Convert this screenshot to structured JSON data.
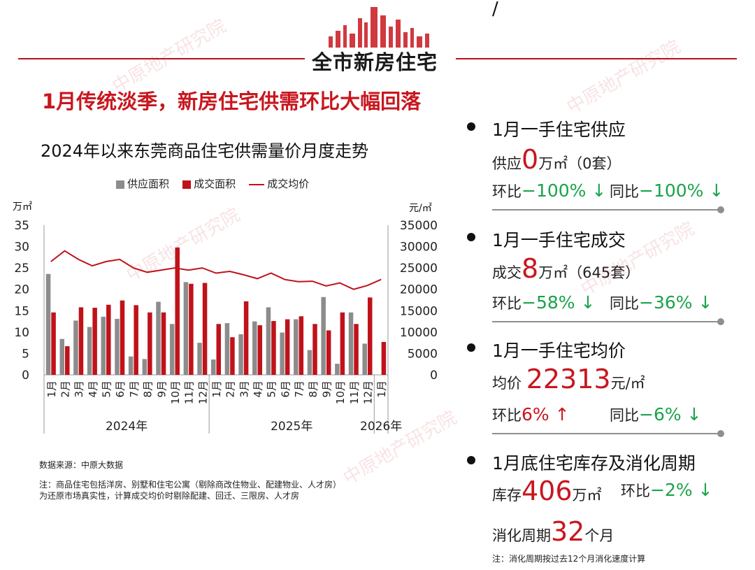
{
  "header": {
    "title": "全市新房住宅",
    "corner_mark": "/"
  },
  "headline": "1月传统淡季，新房住宅供需环比大幅回落",
  "chart_data": {
    "type": "bar",
    "title": "2024年以来东莞商品住宅供需量价月度走势",
    "y_left_unit": "万㎡",
    "y_right_unit": "元/㎡",
    "ylim_left": [
      0,
      35
    ],
    "ylim_right": [
      0,
      35000
    ],
    "y_left_ticks": [
      "0",
      "5",
      "10",
      "15",
      "20",
      "25",
      "30",
      "35"
    ],
    "y_right_ticks": [
      "0",
      "5000",
      "10000",
      "15000",
      "20000",
      "25000",
      "30000",
      "35000"
    ],
    "legend": [
      "供应面积",
      "成交面积",
      "成交均价"
    ],
    "categories": [
      "1月",
      "2月",
      "3月",
      "4月",
      "5月",
      "6月",
      "7月",
      "8月",
      "9月",
      "10月",
      "11月",
      "12月",
      "1月",
      "2月",
      "3月",
      "4月",
      "5月",
      "6月",
      "7月",
      "8月",
      "9月",
      "10月",
      "11月",
      "12月",
      "1月"
    ],
    "year_groups": [
      {
        "label": "2024年",
        "start": 0,
        "end": 11
      },
      {
        "label": "2025年",
        "start": 12,
        "end": 23
      },
      {
        "label": "2026年",
        "start": 24,
        "end": 24
      }
    ],
    "series": [
      {
        "name": "供应面积",
        "type": "bar",
        "axis": "left",
        "color": "#8c8c8c",
        "values": [
          23.6,
          8.4,
          12.7,
          11.2,
          13.6,
          13.1,
          4.3,
          3.7,
          17.1,
          11.9,
          21.7,
          7.5,
          3.6,
          12.1,
          9.5,
          12.5,
          15.8,
          9.9,
          13.0,
          5.8,
          18.2,
          2.6,
          14.6,
          7.3,
          0
        ]
      },
      {
        "name": "成交面积",
        "type": "bar",
        "axis": "left",
        "color": "#c0121a",
        "values": [
          14.6,
          6.7,
          15.8,
          15.7,
          16.4,
          17.4,
          16.3,
          14.6,
          14.6,
          29.8,
          21.3,
          21.5,
          11.9,
          8.8,
          17.2,
          11.6,
          12.6,
          13.0,
          13.7,
          11.9,
          10.4,
          14.6,
          11.9,
          18.1,
          7.7
        ]
      },
      {
        "name": "成交均价",
        "type": "line",
        "axis": "right",
        "color": "#c0121a",
        "values": [
          26500,
          29000,
          27000,
          25500,
          26500,
          27000,
          25000,
          24000,
          24500,
          25000,
          24500,
          25000,
          23800,
          24200,
          23400,
          22500,
          23800,
          22300,
          21800,
          21900,
          20800,
          21500,
          20000,
          20900,
          22313
        ]
      }
    ]
  },
  "notes": {
    "source": "数据来源：中原大数据",
    "line1": "注：商品住宅包括洋房、别墅和住宅公寓（剔除商改住物业、配建物业、人才房）",
    "line2": "为还原市场真实性，计算成交均价时剔除配建、回迁、三限房、人才房"
  },
  "kpis": [
    {
      "heading": "1月一手住宅供应",
      "main_prefix": "供应",
      "main_value": "0",
      "main_unit": "万㎡",
      "main_suffix": "（0套）",
      "mom_label": "环比",
      "mom_value": "−100% ↓",
      "yoy_label": "同比",
      "yoy_value": "−100% ↓"
    },
    {
      "heading": "1月一手住宅成交",
      "main_prefix": "成交",
      "main_value": "8",
      "main_unit": "万㎡",
      "main_suffix": "（645套）",
      "mom_label": "环比",
      "mom_value": "−58% ↓",
      "yoy_label": "同比",
      "yoy_value": "−36% ↓"
    },
    {
      "heading": "1月一手住宅均价",
      "main_prefix": "均价 ",
      "main_value": "22313",
      "main_unit": "元/㎡",
      "main_suffix": "",
      "mom_label": "环比",
      "mom_value": "6% ↑",
      "yoy_label": "同比",
      "yoy_value": "−6% ↓"
    },
    {
      "heading": "1月底住宅库存及消化周期",
      "main_prefix": "库存",
      "main_value": "406",
      "main_unit": "万㎡",
      "main_suffix": "",
      "mom_label": "环比",
      "mom_value": "−2% ↓",
      "cycle_prefix": "消化周期",
      "cycle_value": "32",
      "cycle_unit": "个月",
      "footnote": "注：消化周期按过去12个月消化速度计算"
    }
  ],
  "watermark": "中原地产研究院",
  "colors": {
    "accent": "#c8171f",
    "green": "#1aa34a",
    "supply": "#8c8c8c",
    "deal": "#c0121a"
  }
}
